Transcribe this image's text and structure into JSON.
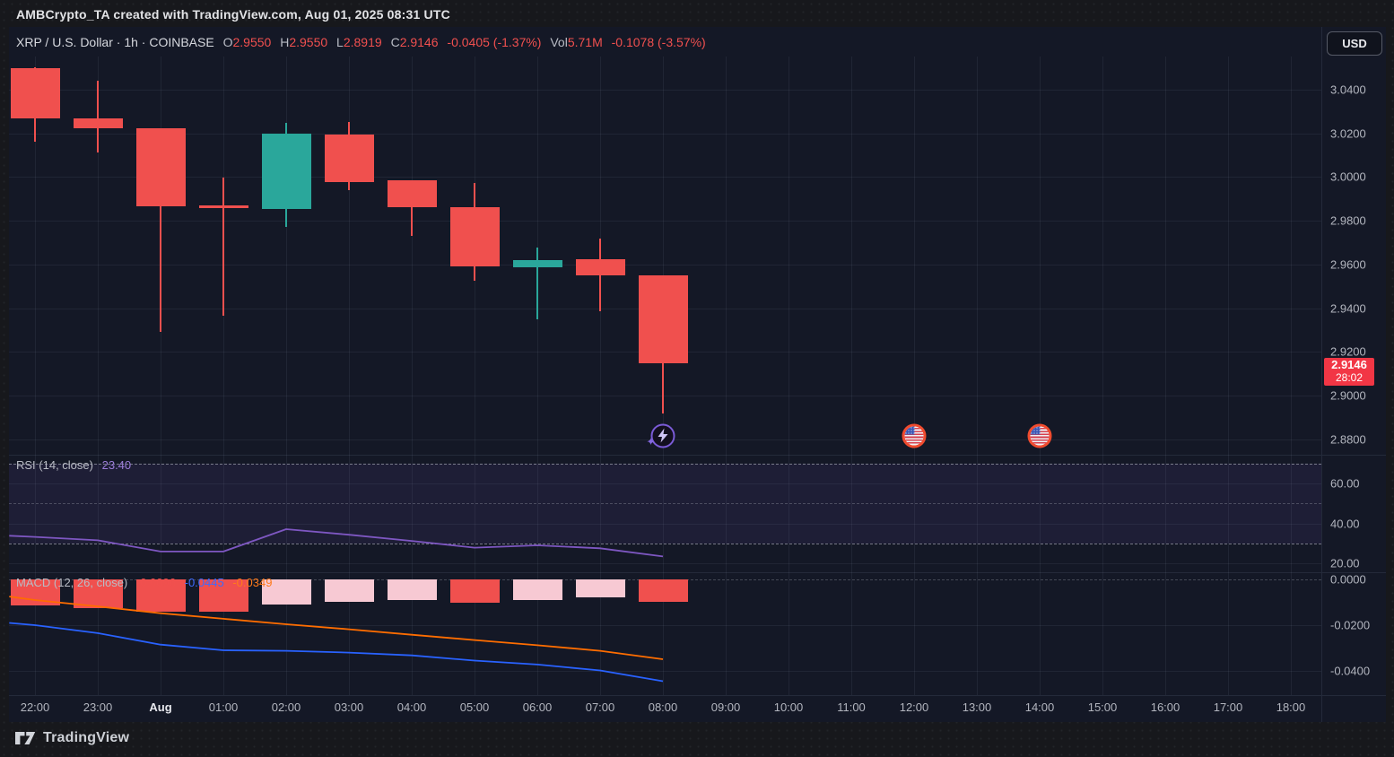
{
  "header": {
    "title": "AMBCrypto_TA created with TradingView.com, Aug 01, 2025 08:31 UTC"
  },
  "toolbar": {
    "symbol_text": "XRP / U.S. Dollar · 1h · COINBASE",
    "o_label": "O",
    "o_value": "2.9550",
    "h_label": "H",
    "h_value": "2.9550",
    "l_label": "L",
    "l_value": "2.8919",
    "c_label": "C",
    "c_value": "2.9146",
    "change_text": "-0.0405 (-1.37%)",
    "vol_label": "Vol",
    "vol_value": "5.71M",
    "vol_change_text": "-0.1078 (-3.57%)"
  },
  "price_axis": {
    "currency_button": "USD",
    "last_price": {
      "value": "2.9146",
      "countdown": "28:02"
    }
  },
  "rsi_panel": {
    "title": "RSI (14, close)",
    "value": "23.40"
  },
  "macd_panel": {
    "title": "MACD (12, 26, close)",
    "histogram_value": "-0.0096",
    "macd_value": "-0.0445",
    "signal_value": "-0.0349"
  },
  "footer": {
    "logo_text": "TradingView"
  },
  "colors": {
    "background": "#141826",
    "up": "#2aa79b",
    "down": "#f0504e",
    "hist_down_bright": "#f0504e",
    "hist_down_pale": "#f7c9d3",
    "rsi_line": "#7e57c2",
    "macd_line": "#2962ff",
    "signal_line": "#ff6d00",
    "price_label": "#f23645"
  },
  "chart_data": {
    "type": "candlestick-with-indicators",
    "symbol": "XRP/USD",
    "interval": "1h",
    "exchange": "COINBASE",
    "time_labels": [
      {
        "i": 0,
        "label": "22:00",
        "bold": false
      },
      {
        "i": 1,
        "label": "23:00",
        "bold": false
      },
      {
        "i": 2,
        "label": "Aug",
        "bold": true
      },
      {
        "i": 3,
        "label": "01:00",
        "bold": false
      },
      {
        "i": 4,
        "label": "02:00",
        "bold": false
      },
      {
        "i": 5,
        "label": "03:00",
        "bold": false
      },
      {
        "i": 6,
        "label": "04:00",
        "bold": false
      },
      {
        "i": 7,
        "label": "05:00",
        "bold": false
      },
      {
        "i": 8,
        "label": "06:00",
        "bold": false
      },
      {
        "i": 9,
        "label": "07:00",
        "bold": false
      },
      {
        "i": 10,
        "label": "08:00",
        "bold": false
      },
      {
        "i": 11,
        "label": "09:00",
        "bold": false
      },
      {
        "i": 12,
        "label": "10:00",
        "bold": false
      },
      {
        "i": 13,
        "label": "11:00",
        "bold": false
      },
      {
        "i": 14,
        "label": "12:00",
        "bold": false
      },
      {
        "i": 15,
        "label": "13:00",
        "bold": false
      },
      {
        "i": 16,
        "label": "14:00",
        "bold": false
      },
      {
        "i": 17,
        "label": "15:00",
        "bold": false
      },
      {
        "i": 18,
        "label": "16:00",
        "bold": false
      },
      {
        "i": 19,
        "label": "17:00",
        "bold": false
      },
      {
        "i": 20,
        "label": "18:00",
        "bold": false
      }
    ],
    "price_ticks": [
      {
        "v": 3.04,
        "label": "3.0400"
      },
      {
        "v": 3.02,
        "label": "3.0200"
      },
      {
        "v": 3.0,
        "label": "3.0000"
      },
      {
        "v": 2.98,
        "label": "2.9800"
      },
      {
        "v": 2.96,
        "label": "2.9600"
      },
      {
        "v": 2.94,
        "label": "2.9400"
      },
      {
        "v": 2.92,
        "label": "2.9200"
      },
      {
        "v": 2.9,
        "label": "2.9000"
      },
      {
        "v": 2.88,
        "label": "2.8800"
      }
    ],
    "candles": [
      {
        "t": "22:00",
        "o": 3.05,
        "h": 3.0502,
        "l": 3.0162,
        "c": 3.027
      },
      {
        "t": "23:00",
        "o": 3.027,
        "h": 3.044,
        "l": 3.0112,
        "c": 3.0222
      },
      {
        "t": "00:00",
        "o": 3.0222,
        "h": 3.0222,
        "l": 2.9291,
        "c": 2.9866
      },
      {
        "t": "01:00",
        "o": 2.9872,
        "h": 2.9996,
        "l": 2.9366,
        "c": 2.9856
      },
      {
        "t": "02:00",
        "o": 2.9855,
        "h": 3.0247,
        "l": 2.9773,
        "c": 3.0197
      },
      {
        "t": "03:00",
        "o": 3.0195,
        "h": 3.0252,
        "l": 2.9941,
        "c": 2.9978
      },
      {
        "t": "04:00",
        "o": 2.9984,
        "h": 2.9984,
        "l": 2.9732,
        "c": 2.9863
      },
      {
        "t": "05:00",
        "o": 2.9863,
        "h": 2.9972,
        "l": 2.9524,
        "c": 2.9592
      },
      {
        "t": "06:00",
        "o": 2.9586,
        "h": 2.9678,
        "l": 2.9349,
        "c": 2.962
      },
      {
        "t": "07:00",
        "o": 2.9622,
        "h": 2.9719,
        "l": 2.9386,
        "c": 2.9549
      },
      {
        "t": "08:00",
        "o": 2.955,
        "h": 2.955,
        "l": 2.8919,
        "c": 2.9146
      }
    ],
    "last_price": 2.9146,
    "rsi": {
      "period": 14,
      "source": "close",
      "last": 23.4,
      "bands": [
        70,
        50,
        30
      ],
      "ticks": [
        {
          "v": 60,
          "label": "60.00"
        },
        {
          "v": 40,
          "label": "40.00"
        },
        {
          "v": 20,
          "label": "20.00"
        }
      ],
      "points": [
        [
          -0.41,
          33.8
        ],
        [
          0,
          33.2
        ],
        [
          1,
          31.5
        ],
        [
          2,
          25.9
        ],
        [
          3,
          25.9
        ],
        [
          4,
          37.1
        ],
        [
          5,
          34.3
        ],
        [
          6,
          31.2
        ],
        [
          7,
          27.8
        ],
        [
          8,
          29.0
        ],
        [
          9,
          27.5
        ],
        [
          10,
          23.4
        ]
      ]
    },
    "macd": {
      "fast": 12,
      "slow": 26,
      "source": "close",
      "last_histogram": -0.0096,
      "last_macd": -0.0445,
      "last_signal": -0.0349,
      "ticks": [
        {
          "v": 0.0,
          "label": "0.0000"
        },
        {
          "v": -0.02,
          "label": "-0.0200"
        },
        {
          "v": -0.04,
          "label": "-0.0400"
        }
      ],
      "histogram": [
        {
          "i": 0,
          "v": -0.0112,
          "tone": "bright"
        },
        {
          "i": 1,
          "v": -0.0125,
          "tone": "bright"
        },
        {
          "i": 2,
          "v": -0.014,
          "tone": "bright"
        },
        {
          "i": 3,
          "v": -0.014,
          "tone": "bright"
        },
        {
          "i": 4,
          "v": -0.011,
          "tone": "pale"
        },
        {
          "i": 5,
          "v": -0.0098,
          "tone": "pale"
        },
        {
          "i": 6,
          "v": -0.009,
          "tone": "pale"
        },
        {
          "i": 7,
          "v": -0.01,
          "tone": "bright"
        },
        {
          "i": 8,
          "v": -0.009,
          "tone": "pale"
        },
        {
          "i": 9,
          "v": -0.008,
          "tone": "pale"
        },
        {
          "i": 10,
          "v": -0.0096,
          "tone": "bright"
        }
      ],
      "macd_line": [
        [
          -0.41,
          -0.019
        ],
        [
          0,
          -0.02
        ],
        [
          1,
          -0.0235
        ],
        [
          2,
          -0.0285
        ],
        [
          3,
          -0.031
        ],
        [
          4,
          -0.0312
        ],
        [
          5,
          -0.032
        ],
        [
          6,
          -0.0332
        ],
        [
          7,
          -0.0355
        ],
        [
          8,
          -0.0372
        ],
        [
          9,
          -0.0398
        ],
        [
          10,
          -0.0445
        ]
      ],
      "signal_line": [
        [
          -0.41,
          -0.0075
        ],
        [
          0,
          -0.009
        ],
        [
          1,
          -0.0118
        ],
        [
          2,
          -0.0148
        ],
        [
          3,
          -0.0172
        ],
        [
          4,
          -0.0196
        ],
        [
          5,
          -0.0218
        ],
        [
          6,
          -0.0242
        ],
        [
          7,
          -0.0265
        ],
        [
          8,
          -0.0288
        ],
        [
          9,
          -0.0312
        ],
        [
          10,
          -0.0349
        ]
      ]
    },
    "events": [
      {
        "i": 10,
        "type": "lightning",
        "time": "08:00"
      },
      {
        "i": 14,
        "type": "us-flag",
        "time": "12:00"
      },
      {
        "i": 16,
        "type": "us-flag",
        "time": "14:00"
      }
    ]
  }
}
